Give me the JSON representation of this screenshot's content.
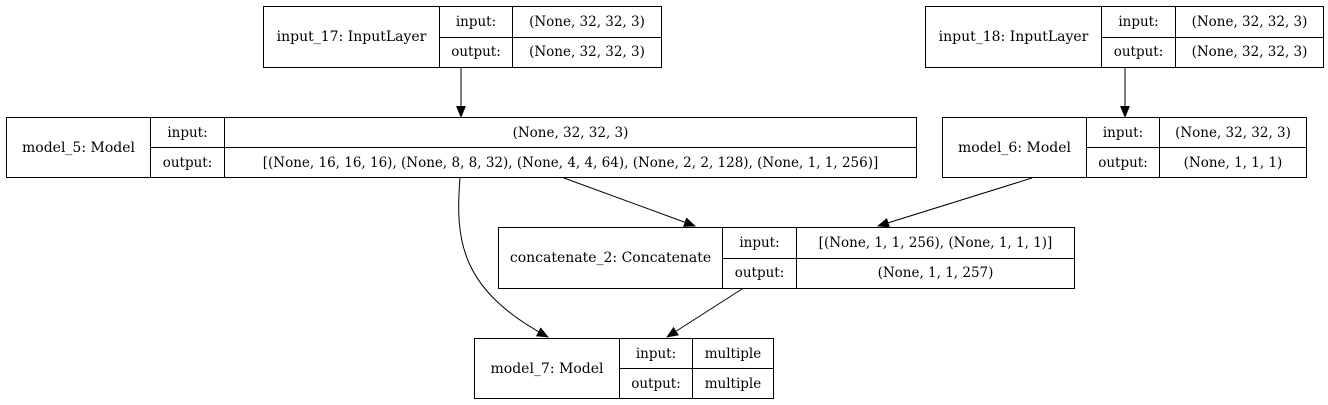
{
  "nodes": {
    "input_17": {
      "name": "input_17: InputLayer",
      "input_label": "input:",
      "output_label": "output:",
      "input_value": "(None, 32, 32, 3)",
      "output_value": "(None, 32, 32, 3)"
    },
    "input_18": {
      "name": "input_18: InputLayer",
      "input_label": "input:",
      "output_label": "output:",
      "input_value": "(None, 32, 32, 3)",
      "output_value": "(None, 32, 32, 3)"
    },
    "model_5": {
      "name": "model_5: Model",
      "input_label": "input:",
      "output_label": "output:",
      "input_value": "(None, 32, 32, 3)",
      "output_value": "[(None, 16, 16, 16), (None, 8, 8, 32), (None, 4, 4, 64), (None, 2, 2, 128), (None, 1, 1, 256)]"
    },
    "model_6": {
      "name": "model_6: Model",
      "input_label": "input:",
      "output_label": "output:",
      "input_value": "(None, 32, 32, 3)",
      "output_value": "(None, 1, 1, 1)"
    },
    "concatenate_2": {
      "name": "concatenate_2: Concatenate",
      "input_label": "input:",
      "output_label": "output:",
      "input_value": "[(None, 1, 1, 256), (None, 1, 1, 1)]",
      "output_value": "(None, 1, 1, 257)"
    },
    "model_7": {
      "name": "model_7: Model",
      "input_label": "input:",
      "output_label": "output:",
      "input_value": "multiple",
      "output_value": "multiple"
    }
  },
  "edges": [
    {
      "from": "input_17",
      "to": "model_5"
    },
    {
      "from": "input_18",
      "to": "model_6"
    },
    {
      "from": "model_5",
      "to": "concatenate_2"
    },
    {
      "from": "model_6",
      "to": "concatenate_2"
    },
    {
      "from": "model_5",
      "to": "model_7"
    },
    {
      "from": "concatenate_2",
      "to": "model_7"
    }
  ]
}
